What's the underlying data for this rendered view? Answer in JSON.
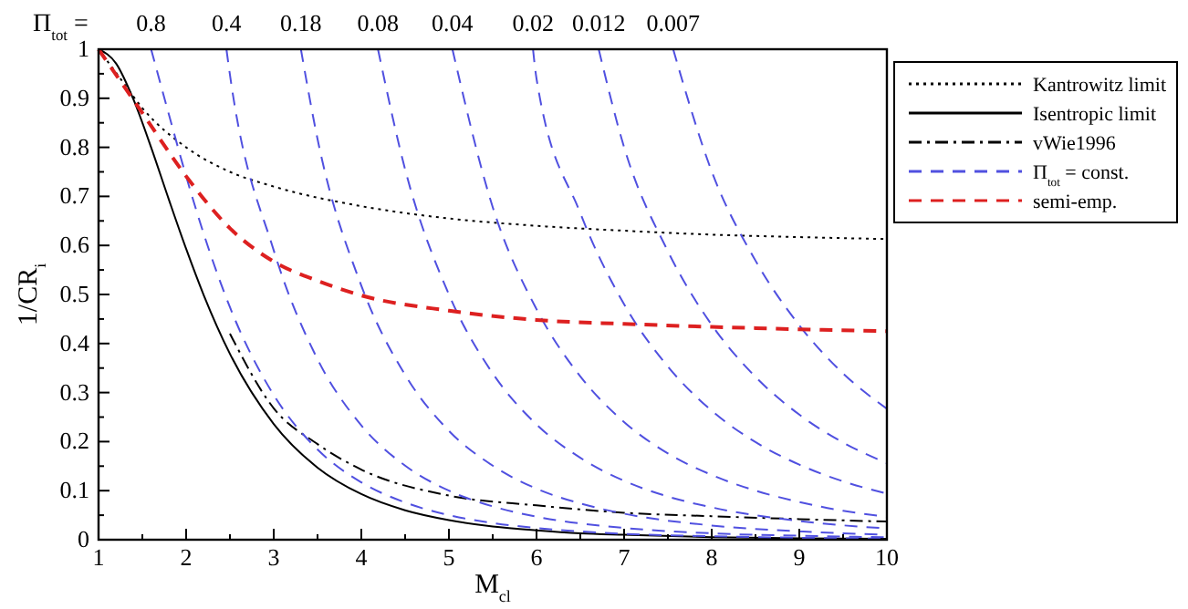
{
  "chart_data": {
    "type": "line",
    "xlabel": "M$_{cl}$",
    "ylabel": "1/CR$_{i}$",
    "xlim": [
      1,
      10
    ],
    "ylim": [
      0,
      1
    ],
    "xticks": [
      1,
      {
        "value": 1.5,
        "label": null
      },
      2,
      {
        "value": 2.5,
        "label": null
      },
      3,
      {
        "value": 3.5,
        "label": null
      },
      4,
      {
        "value": 4.5,
        "label": null
      },
      5,
      {
        "value": 5.5,
        "label": null
      },
      6,
      {
        "value": 6.5,
        "label": null
      },
      7,
      {
        "value": 7.5,
        "label": null
      },
      8,
      {
        "value": 8.5,
        "label": null
      },
      9,
      {
        "value": 9.5,
        "label": null
      },
      10
    ],
    "yticks": [
      0,
      {
        "value": 0.05,
        "label": null
      },
      0.1,
      {
        "value": 0.15,
        "label": null
      },
      0.2,
      {
        "value": 0.25,
        "label": null
      },
      0.3,
      {
        "value": 0.35,
        "label": null
      },
      0.4,
      {
        "value": 0.45,
        "label": null
      },
      0.5,
      {
        "value": 0.55,
        "label": null
      },
      0.6,
      {
        "value": 0.65,
        "label": null
      },
      0.7,
      {
        "value": 0.75,
        "label": null
      },
      0.8,
      {
        "value": 0.85,
        "label": null
      },
      0.9,
      {
        "value": 0.95,
        "label": null
      },
      1
    ],
    "grid": false,
    "legend": "right",
    "marker": "none",
    "annotations": [
      "Π$_{tot}$ =",
      {
        "text": "0.8",
        "x": 1.6,
        "y": 1
      },
      {
        "text": "0.4",
        "x": 2.46,
        "y": 1
      },
      {
        "text": "0.18",
        "x": 3.31,
        "y": 1
      },
      {
        "text": "0.08",
        "x": 4.19,
        "y": 1
      },
      {
        "text": "0.04",
        "x": 5.04,
        "y": 1
      },
      {
        "text": "0.02",
        "x": 5.96,
        "y": 1
      },
      {
        "text": "0.012",
        "x": 6.71,
        "y": 1
      },
      {
        "text": "0.007",
        "x": 7.56,
        "y": 1
      }
    ],
    "series": [
      {
        "name": "Kantrowitz limit",
        "color": "#000000",
        "line_style": "dotted",
        "x": [
          1,
          1.25,
          1.5,
          2,
          2.5,
          3,
          4,
          5,
          6,
          7,
          8,
          9,
          10
        ],
        "values": [
          1,
          0.94,
          0.88,
          0.8,
          0.75,
          0.72,
          0.68,
          0.655,
          0.64,
          0.63,
          0.622,
          0.617,
          0.613
        ]
      },
      {
        "name": "Isentropic limit",
        "color": "#000000",
        "line_style": "solid",
        "x": [
          1,
          1.2,
          1.4,
          1.6,
          1.8,
          2,
          2.2,
          2.5,
          3,
          3.5,
          4,
          4.5,
          5,
          5.5,
          6,
          6.5,
          7,
          8,
          9,
          10
        ],
        "values": [
          1,
          0.971,
          0.897,
          0.8,
          0.695,
          0.593,
          0.499,
          0.379,
          0.236,
          0.147,
          0.093,
          0.06,
          0.04,
          0.027,
          0.019,
          0.013,
          0.01,
          0.005,
          0.003,
          0.002
        ]
      },
      {
        "name": "vWie1996",
        "color": "#000000",
        "line_style": "dashdot",
        "x": [
          2.5,
          3,
          3.5,
          4,
          5,
          6,
          7,
          8,
          9,
          10
        ],
        "values": [
          0.42,
          0.268,
          0.195,
          0.143,
          0.09,
          0.07,
          0.055,
          0.048,
          0.042,
          0.037
        ]
      },
      {
        "name": "Π$_{tot}$ = const.",
        "color": "#5050e0",
        "line_style": "dashed",
        "x": [
          1.6,
          1.8,
          2,
          2.2,
          2.5,
          3,
          3.5,
          4,
          4.5,
          5,
          5.5,
          6,
          7,
          8,
          9,
          10
        ],
        "values": [
          1,
          0.869,
          0.741,
          0.624,
          0.474,
          0.295,
          0.184,
          0.117,
          0.076,
          0.05,
          0.034,
          0.024,
          0.012,
          0.007,
          0.004,
          0.002
        ]
      },
      {
        "color": "#5050e0",
        "line_style": "dashed",
        "x": [
          2.46,
          2.5,
          3,
          3.5,
          4,
          4.5,
          5,
          5.5,
          6,
          7,
          8,
          9,
          10
        ],
        "values": [
          1,
          0.948,
          0.59,
          0.368,
          0.233,
          0.151,
          0.1,
          0.068,
          0.047,
          0.024,
          0.013,
          0.008,
          0.005
        ]
      },
      {
        "color": "#5050e0",
        "line_style": "dashed",
        "x": [
          3.31,
          3.5,
          4,
          4.5,
          5,
          5.5,
          6,
          6.5,
          7,
          8,
          9,
          10
        ],
        "values": [
          1,
          0.817,
          0.518,
          0.336,
          0.222,
          0.151,
          0.104,
          0.074,
          0.053,
          0.029,
          0.017,
          0.01
        ]
      },
      {
        "color": "#5050e0",
        "line_style": "dashed",
        "x": [
          4.19,
          4.5,
          5,
          5.5,
          6,
          6.5,
          7,
          7.5,
          8,
          9,
          10
        ],
        "values": [
          1,
          0.755,
          0.5,
          0.339,
          0.235,
          0.167,
          0.12,
          0.088,
          0.066,
          0.038,
          0.023
        ]
      },
      {
        "color": "#5050e0",
        "line_style": "dashed",
        "x": [
          5.04,
          5.5,
          6,
          6.5,
          7,
          7.5,
          8,
          8.5,
          9,
          9.5,
          10
        ],
        "values": [
          1,
          0.678,
          0.47,
          0.333,
          0.24,
          0.176,
          0.132,
          0.1,
          0.077,
          0.059,
          0.047
        ]
      },
      {
        "color": "#5050e0",
        "line_style": "dashed",
        "x": [
          5.96,
          6,
          6.5,
          7,
          7.5,
          8,
          8.5,
          9,
          9.5,
          10
        ],
        "values": [
          1,
          0.94,
          0.666,
          0.48,
          0.353,
          0.263,
          0.199,
          0.153,
          0.119,
          0.094
        ]
      },
      {
        "color": "#5050e0",
        "line_style": "dashed",
        "x": [
          6.71,
          7,
          7.5,
          8,
          8.5,
          9,
          9.5,
          10
        ],
        "values": [
          1,
          0.8,
          0.588,
          0.438,
          0.332,
          0.255,
          0.198,
          0.156
        ]
      },
      {
        "color": "#5050e0",
        "line_style": "dashed",
        "x": [
          7.56,
          8,
          8.5,
          9,
          9.5,
          10
        ],
        "values": [
          1,
          0.751,
          0.569,
          0.437,
          0.339,
          0.267
        ]
      },
      {
        "name": "semi-emp.",
        "color": "#dd2020",
        "line_style": "dashed",
        "x": [
          1,
          1.5,
          2,
          2.5,
          3,
          3.5,
          4,
          5,
          6,
          7,
          8,
          9,
          10
        ],
        "values": [
          1,
          0.87,
          0.741,
          0.635,
          0.567,
          0.528,
          0.498,
          0.467,
          0.448,
          0.44,
          0.434,
          0.429,
          0.425
        ]
      }
    ]
  }
}
